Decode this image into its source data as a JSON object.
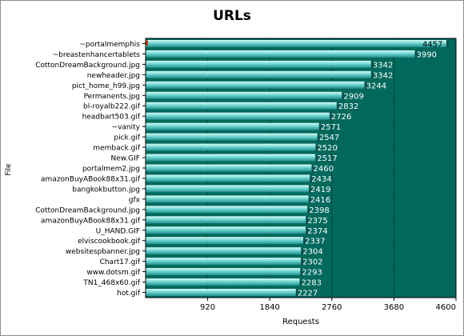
{
  "chart_data": {
    "type": "bar",
    "orientation": "horizontal",
    "title": "URLs",
    "xlabel": "Requests",
    "ylabel": "File",
    "xlim": [
      0,
      4600
    ],
    "xticks": [
      "920",
      "1840",
      "2760",
      "3680",
      "4600"
    ],
    "grid": true,
    "categories": [
      "~portalmemphis",
      "~breastenhancertablets",
      "CottonDreamBackground.jpg",
      "newheader.jpg",
      "pict_home_h99.jpg",
      "Permanents.jpg",
      "bl-royalb222.gif",
      "headbart503.gif",
      "~vanity",
      "pick.gif",
      "memback.gif",
      "New.GIF",
      "portalmem2.jpg",
      "amazonBuyABook88x31.gif",
      "bangkokbutton.jpg",
      "gfx",
      "CottonDreamBackground.jpg",
      "amazonBuyABook88x31.gif",
      "U_HAND.GIF",
      "elviscookbook.gif",
      "websitespbanner.jpg",
      "Chart17.gif",
      "www.dotsm.gif",
      "TN1_468x60.gif",
      "hot.gif"
    ],
    "values": [
      4457,
      3990,
      3342,
      3342,
      3244,
      2909,
      2832,
      2726,
      2571,
      2547,
      2520,
      2517,
      2460,
      2434,
      2419,
      2416,
      2398,
      2375,
      2374,
      2337,
      2304,
      2302,
      2293,
      2283,
      2227
    ]
  },
  "colors": {
    "plot_background": "#00695c",
    "bar_top": "#d8fbf8",
    "bar_mid": "#6fd6d2",
    "bar_bottom": "#1f8c89",
    "bar_end": "#0d4f4c",
    "grid": "#000000",
    "highlight": "#cc3300"
  }
}
